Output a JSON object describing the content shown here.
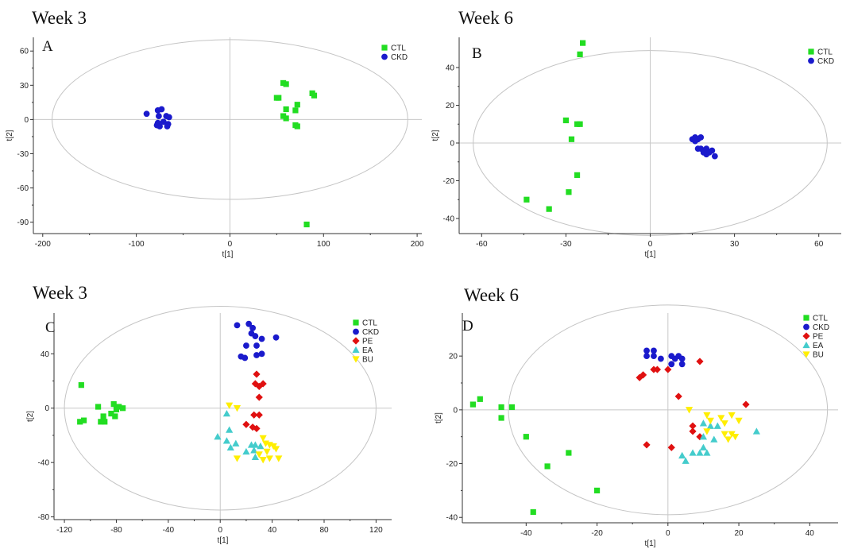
{
  "chart_data": [
    {
      "type": "scatter",
      "week_title": "Week 3",
      "panel_label": "A",
      "xlabel": "t[1]",
      "ylabel": "t[2]",
      "xlim": [
        -210,
        205
      ],
      "ylim": [
        -100,
        72
      ],
      "xticks": [
        -200,
        -100,
        0,
        100,
        200
      ],
      "yticks": [
        60,
        30,
        0,
        -30,
        -60,
        -90
      ],
      "ellipse": {
        "rx": 190,
        "ry": 70
      },
      "legend": "top-right",
      "series": [
        {
          "name": "CTL",
          "color": "#22dd22",
          "marker": "square",
          "points": [
            [
              57,
              32
            ],
            [
              60,
              31
            ],
            [
              50,
              19
            ],
            [
              52,
              19
            ],
            [
              72,
              13
            ],
            [
              88,
              23
            ],
            [
              90,
              21
            ],
            [
              70,
              8
            ],
            [
              60,
              9
            ],
            [
              57,
              3
            ],
            [
              60,
              1
            ],
            [
              70,
              -5
            ],
            [
              72,
              -6
            ],
            [
              82,
              -92
            ]
          ]
        },
        {
          "name": "CKD",
          "color": "#1a1acc",
          "marker": "circle",
          "points": [
            [
              -89,
              5
            ],
            [
              -77,
              8
            ],
            [
              -73,
              9
            ],
            [
              -76,
              3
            ],
            [
              -68,
              3
            ],
            [
              -65,
              2
            ],
            [
              -77,
              -3
            ],
            [
              -71,
              -2
            ],
            [
              -66,
              -4
            ],
            [
              -75,
              -6
            ],
            [
              -78,
              -5
            ],
            [
              -67,
              -6
            ]
          ]
        }
      ]
    },
    {
      "type": "scatter",
      "week_title": "Week 6",
      "panel_label": "B",
      "xlabel": "t[1]",
      "ylabel": "t[2]",
      "xlim": [
        -68,
        68
      ],
      "ylim": [
        -48,
        56
      ],
      "xticks": [
        -60,
        -30,
        0,
        30,
        60
      ],
      "yticks": [
        40,
        20,
        0,
        -20,
        -40
      ],
      "ellipse": {
        "rx": 63,
        "ry": 49
      },
      "legend": "top-right",
      "series": [
        {
          "name": "CTL",
          "color": "#22dd22",
          "marker": "square",
          "points": [
            [
              -24,
              53
            ],
            [
              -25,
              47
            ],
            [
              -30,
              12
            ],
            [
              -26,
              10
            ],
            [
              -25,
              10
            ],
            [
              -28,
              2
            ],
            [
              -26,
              -17
            ],
            [
              -29,
              -26
            ],
            [
              -44,
              -30
            ],
            [
              -36,
              -35
            ]
          ]
        },
        {
          "name": "CKD",
          "color": "#1a1acc",
          "marker": "circle",
          "points": [
            [
              15,
              2
            ],
            [
              16,
              3
            ],
            [
              17,
              2
            ],
            [
              18,
              3
            ],
            [
              16,
              1
            ],
            [
              18,
              -3
            ],
            [
              19,
              -4
            ],
            [
              20,
              -3
            ],
            [
              21,
              -5
            ],
            [
              22,
              -4
            ],
            [
              20,
              -6
            ],
            [
              23,
              -7
            ],
            [
              19,
              -5
            ],
            [
              17,
              -3
            ]
          ]
        }
      ]
    },
    {
      "type": "scatter",
      "week_title": "Week 3",
      "panel_label": "C",
      "xlabel": "t[1]",
      "ylabel": "t[2]",
      "xlim": [
        -128,
        132
      ],
      "ylim": [
        -82,
        70
      ],
      "xticks": [
        -120,
        -80,
        -40,
        0,
        40,
        80,
        120
      ],
      "yticks": [
        40,
        0,
        -40,
        -80
      ],
      "ellipse": {
        "rx": 120,
        "ry": 75
      },
      "legend": "top-right",
      "series": [
        {
          "name": "CTL",
          "color": "#22dd22",
          "marker": "square",
          "points": [
            [
              -107,
              17
            ],
            [
              -94,
              1
            ],
            [
              -82,
              3
            ],
            [
              -78,
              1
            ],
            [
              -75,
              0
            ],
            [
              -80,
              -1
            ],
            [
              -84,
              -4
            ],
            [
              -81,
              -6
            ],
            [
              -90,
              -6
            ],
            [
              -89,
              -10
            ],
            [
              -92,
              -10
            ],
            [
              -105,
              -9
            ],
            [
              -108,
              -10
            ]
          ]
        },
        {
          "name": "CKD",
          "color": "#1a1acc",
          "marker": "circle",
          "points": [
            [
              13,
              61
            ],
            [
              22,
              62
            ],
            [
              25,
              59
            ],
            [
              24,
              55
            ],
            [
              27,
              53
            ],
            [
              32,
              51
            ],
            [
              43,
              52
            ],
            [
              28,
              46
            ],
            [
              20,
              46
            ],
            [
              32,
              40
            ],
            [
              16,
              38
            ],
            [
              19,
              37
            ],
            [
              28,
              39
            ]
          ]
        },
        {
          "name": "PE",
          "color": "#e01010",
          "marker": "diamond",
          "points": [
            [
              28,
              25
            ],
            [
              27,
              18
            ],
            [
              30,
              16
            ],
            [
              33,
              18
            ],
            [
              30,
              8
            ],
            [
              30,
              -5
            ],
            [
              26,
              -5
            ],
            [
              20,
              -12
            ],
            [
              25,
              -14
            ],
            [
              28,
              -15
            ]
          ]
        },
        {
          "name": "EA",
          "color": "#44cccc",
          "marker": "triangle-up",
          "points": [
            [
              5,
              -4
            ],
            [
              7,
              -16
            ],
            [
              -2,
              -21
            ],
            [
              5,
              -24
            ],
            [
              12,
              -26
            ],
            [
              20,
              -32
            ],
            [
              24,
              -27
            ],
            [
              26,
              -31
            ],
            [
              27,
              -27
            ],
            [
              31,
              -28
            ],
            [
              27,
              -36
            ],
            [
              8,
              -29
            ]
          ]
        },
        {
          "name": "BU",
          "color": "#ffee00",
          "marker": "triangle-down",
          "points": [
            [
              7,
              2
            ],
            [
              13,
              0
            ],
            [
              33,
              -22
            ],
            [
              35,
              -26
            ],
            [
              38,
              -27
            ],
            [
              41,
              -28
            ],
            [
              43,
              -30
            ],
            [
              30,
              -34
            ],
            [
              33,
              -38
            ],
            [
              38,
              -37
            ],
            [
              45,
              -37
            ],
            [
              36,
              -32
            ],
            [
              13,
              -37
            ]
          ]
        }
      ]
    },
    {
      "type": "scatter",
      "week_title": "Week 6",
      "panel_label": "D",
      "xlabel": "t[1]",
      "ylabel": "t[2]",
      "xlim": [
        -58,
        48
      ],
      "ylim": [
        -42,
        36
      ],
      "xticks": [
        -40,
        -20,
        0,
        20,
        40
      ],
      "yticks": [
        20,
        0,
        -20,
        -40
      ],
      "ellipse": {
        "rx": 45,
        "ry": 39
      },
      "legend": "top-right",
      "series": [
        {
          "name": "CTL",
          "color": "#22dd22",
          "marker": "square",
          "points": [
            [
              -53,
              4
            ],
            [
              -55,
              2
            ],
            [
              -47,
              1
            ],
            [
              -44,
              1
            ],
            [
              -47,
              -3
            ],
            [
              -40,
              -10
            ],
            [
              -28,
              -16
            ],
            [
              -34,
              -21
            ],
            [
              -20,
              -30
            ],
            [
              -38,
              -38
            ]
          ]
        },
        {
          "name": "CKD",
          "color": "#1a1acc",
          "marker": "circle",
          "points": [
            [
              -6,
              22
            ],
            [
              -4,
              22
            ],
            [
              -6,
              20
            ],
            [
              -4,
              20
            ],
            [
              -2,
              19
            ],
            [
              1,
              20
            ],
            [
              2,
              19
            ],
            [
              3,
              20
            ],
            [
              4,
              19
            ],
            [
              1,
              17
            ],
            [
              4,
              17
            ]
          ]
        },
        {
          "name": "PE",
          "color": "#e01010",
          "marker": "diamond",
          "points": [
            [
              -8,
              12
            ],
            [
              -7,
              13
            ],
            [
              -4,
              15
            ],
            [
              -3,
              15
            ],
            [
              0,
              15
            ],
            [
              9,
              18
            ],
            [
              3,
              5
            ],
            [
              7,
              -6
            ],
            [
              7,
              -8
            ],
            [
              9,
              -10
            ],
            [
              1,
              -14
            ],
            [
              -6,
              -13
            ],
            [
              22,
              2
            ]
          ]
        },
        {
          "name": "EA",
          "color": "#44cccc",
          "marker": "triangle-up",
          "points": [
            [
              4,
              -17
            ],
            [
              5,
              -19
            ],
            [
              7,
              -16
            ],
            [
              9,
              -16
            ],
            [
              11,
              -16
            ],
            [
              13,
              -11
            ],
            [
              10,
              -14
            ],
            [
              10,
              -5
            ],
            [
              12,
              -6
            ],
            [
              25,
              -8
            ],
            [
              14,
              -6
            ],
            [
              10,
              -10
            ]
          ]
        },
        {
          "name": "BU",
          "color": "#ffee00",
          "marker": "triangle-down",
          "points": [
            [
              11,
              -2
            ],
            [
              15,
              -3
            ],
            [
              12,
              -4
            ],
            [
              16,
              -5
            ],
            [
              18,
              -2
            ],
            [
              20,
              -4
            ],
            [
              18,
              -9
            ],
            [
              16,
              -9
            ],
            [
              11,
              -8
            ],
            [
              19,
              -10
            ],
            [
              17,
              -11
            ],
            [
              6,
              0
            ]
          ]
        }
      ]
    }
  ]
}
